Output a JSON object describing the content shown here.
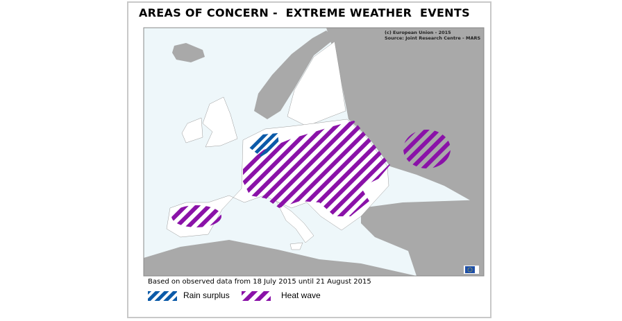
{
  "title": "AREAS OF CONCERN -  EXTREME WEATHER  EVENTS",
  "credit": {
    "line1": "(c) European Union - 2015",
    "line2": "Source: Joint Research Centre - MARS"
  },
  "note": "Based on observed data from 18 July 2015 until 21 August 2015",
  "legend": [
    {
      "label": "Rain surplus",
      "color": "#0b5aa8",
      "pattern": "diagonal-hatch"
    },
    {
      "label": "Heat wave",
      "color": "#8a12a8",
      "pattern": "diagonal-hatch"
    }
  ],
  "colors": {
    "sea": "#eef7fa",
    "eu_land": "#ffffff",
    "non_eu_land": "#a9a9a9",
    "rain_surplus": "#0b5aa8",
    "heat_wave": "#8a12a8"
  },
  "regions": {
    "heat_wave": [
      "Central and Eastern Europe",
      "Central Spain",
      "Caucasus"
    ],
    "rain_surplus": [
      "Netherlands"
    ]
  },
  "logo": "eu-flag"
}
